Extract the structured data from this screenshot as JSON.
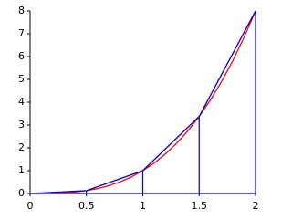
{
  "chart_data": {
    "type": "line",
    "series": [
      {
        "color": "#ff0000",
        "x": [
          0,
          0.1,
          0.2,
          0.3,
          0.4,
          0.5,
          0.6,
          0.7,
          0.8,
          0.9,
          1,
          1.1,
          1.2,
          1.3,
          1.4,
          1.5,
          1.6,
          1.7,
          1.8,
          1.9,
          2
        ],
        "values": [
          0,
          0.001,
          0.008,
          0.027,
          0.064,
          0.125,
          0.216,
          0.343,
          0.512,
          0.729,
          1,
          1.331,
          1.728,
          2.197,
          2.744,
          3.375,
          4.096,
          4.913,
          5.832,
          6.859,
          8
        ]
      },
      {
        "color": "#0000cc",
        "x": [
          0,
          0.5,
          1,
          1.5,
          2
        ],
        "values": [
          0,
          0.125,
          1,
          3.375,
          8
        ],
        "drop_lines": true
      }
    ],
    "xlim": [
      0,
      2
    ],
    "xticks": [
      0,
      0.5,
      1,
      1.5,
      2
    ],
    "ylim": [
      0,
      8
    ],
    "yticks": [
      0,
      1,
      2,
      3,
      4,
      5,
      6,
      7,
      8
    ],
    "grid": false
  }
}
